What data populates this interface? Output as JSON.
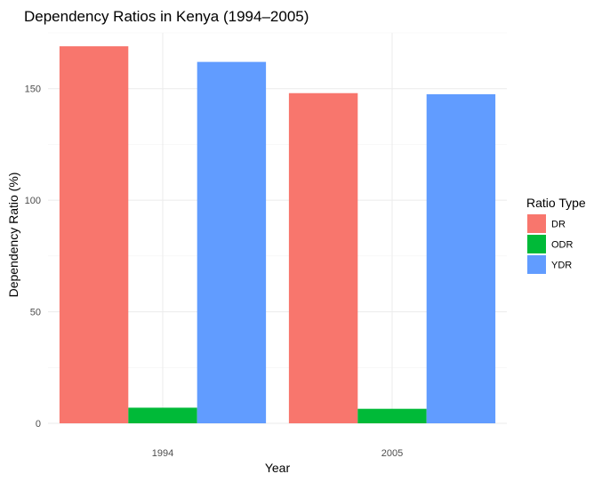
{
  "chart_data": {
    "type": "bar",
    "title": "Dependency Ratios in Kenya (1994–2005)",
    "xlabel": "Year",
    "ylabel": "Dependency Ratio (%)",
    "categories": [
      "1994",
      "2005"
    ],
    "series": [
      {
        "name": "DR",
        "color": "#F8766D",
        "values": [
          169,
          148
        ]
      },
      {
        "name": "ODR",
        "color": "#00BA38",
        "values": [
          7,
          6.5
        ]
      },
      {
        "name": "YDR",
        "color": "#619CFF",
        "values": [
          162,
          147.5
        ]
      }
    ],
    "ylim": [
      0,
      175
    ],
    "yticks": [
      0,
      50,
      100,
      150
    ],
    "legend_title": "Ratio Type",
    "legend_position": "right",
    "grid": true
  }
}
